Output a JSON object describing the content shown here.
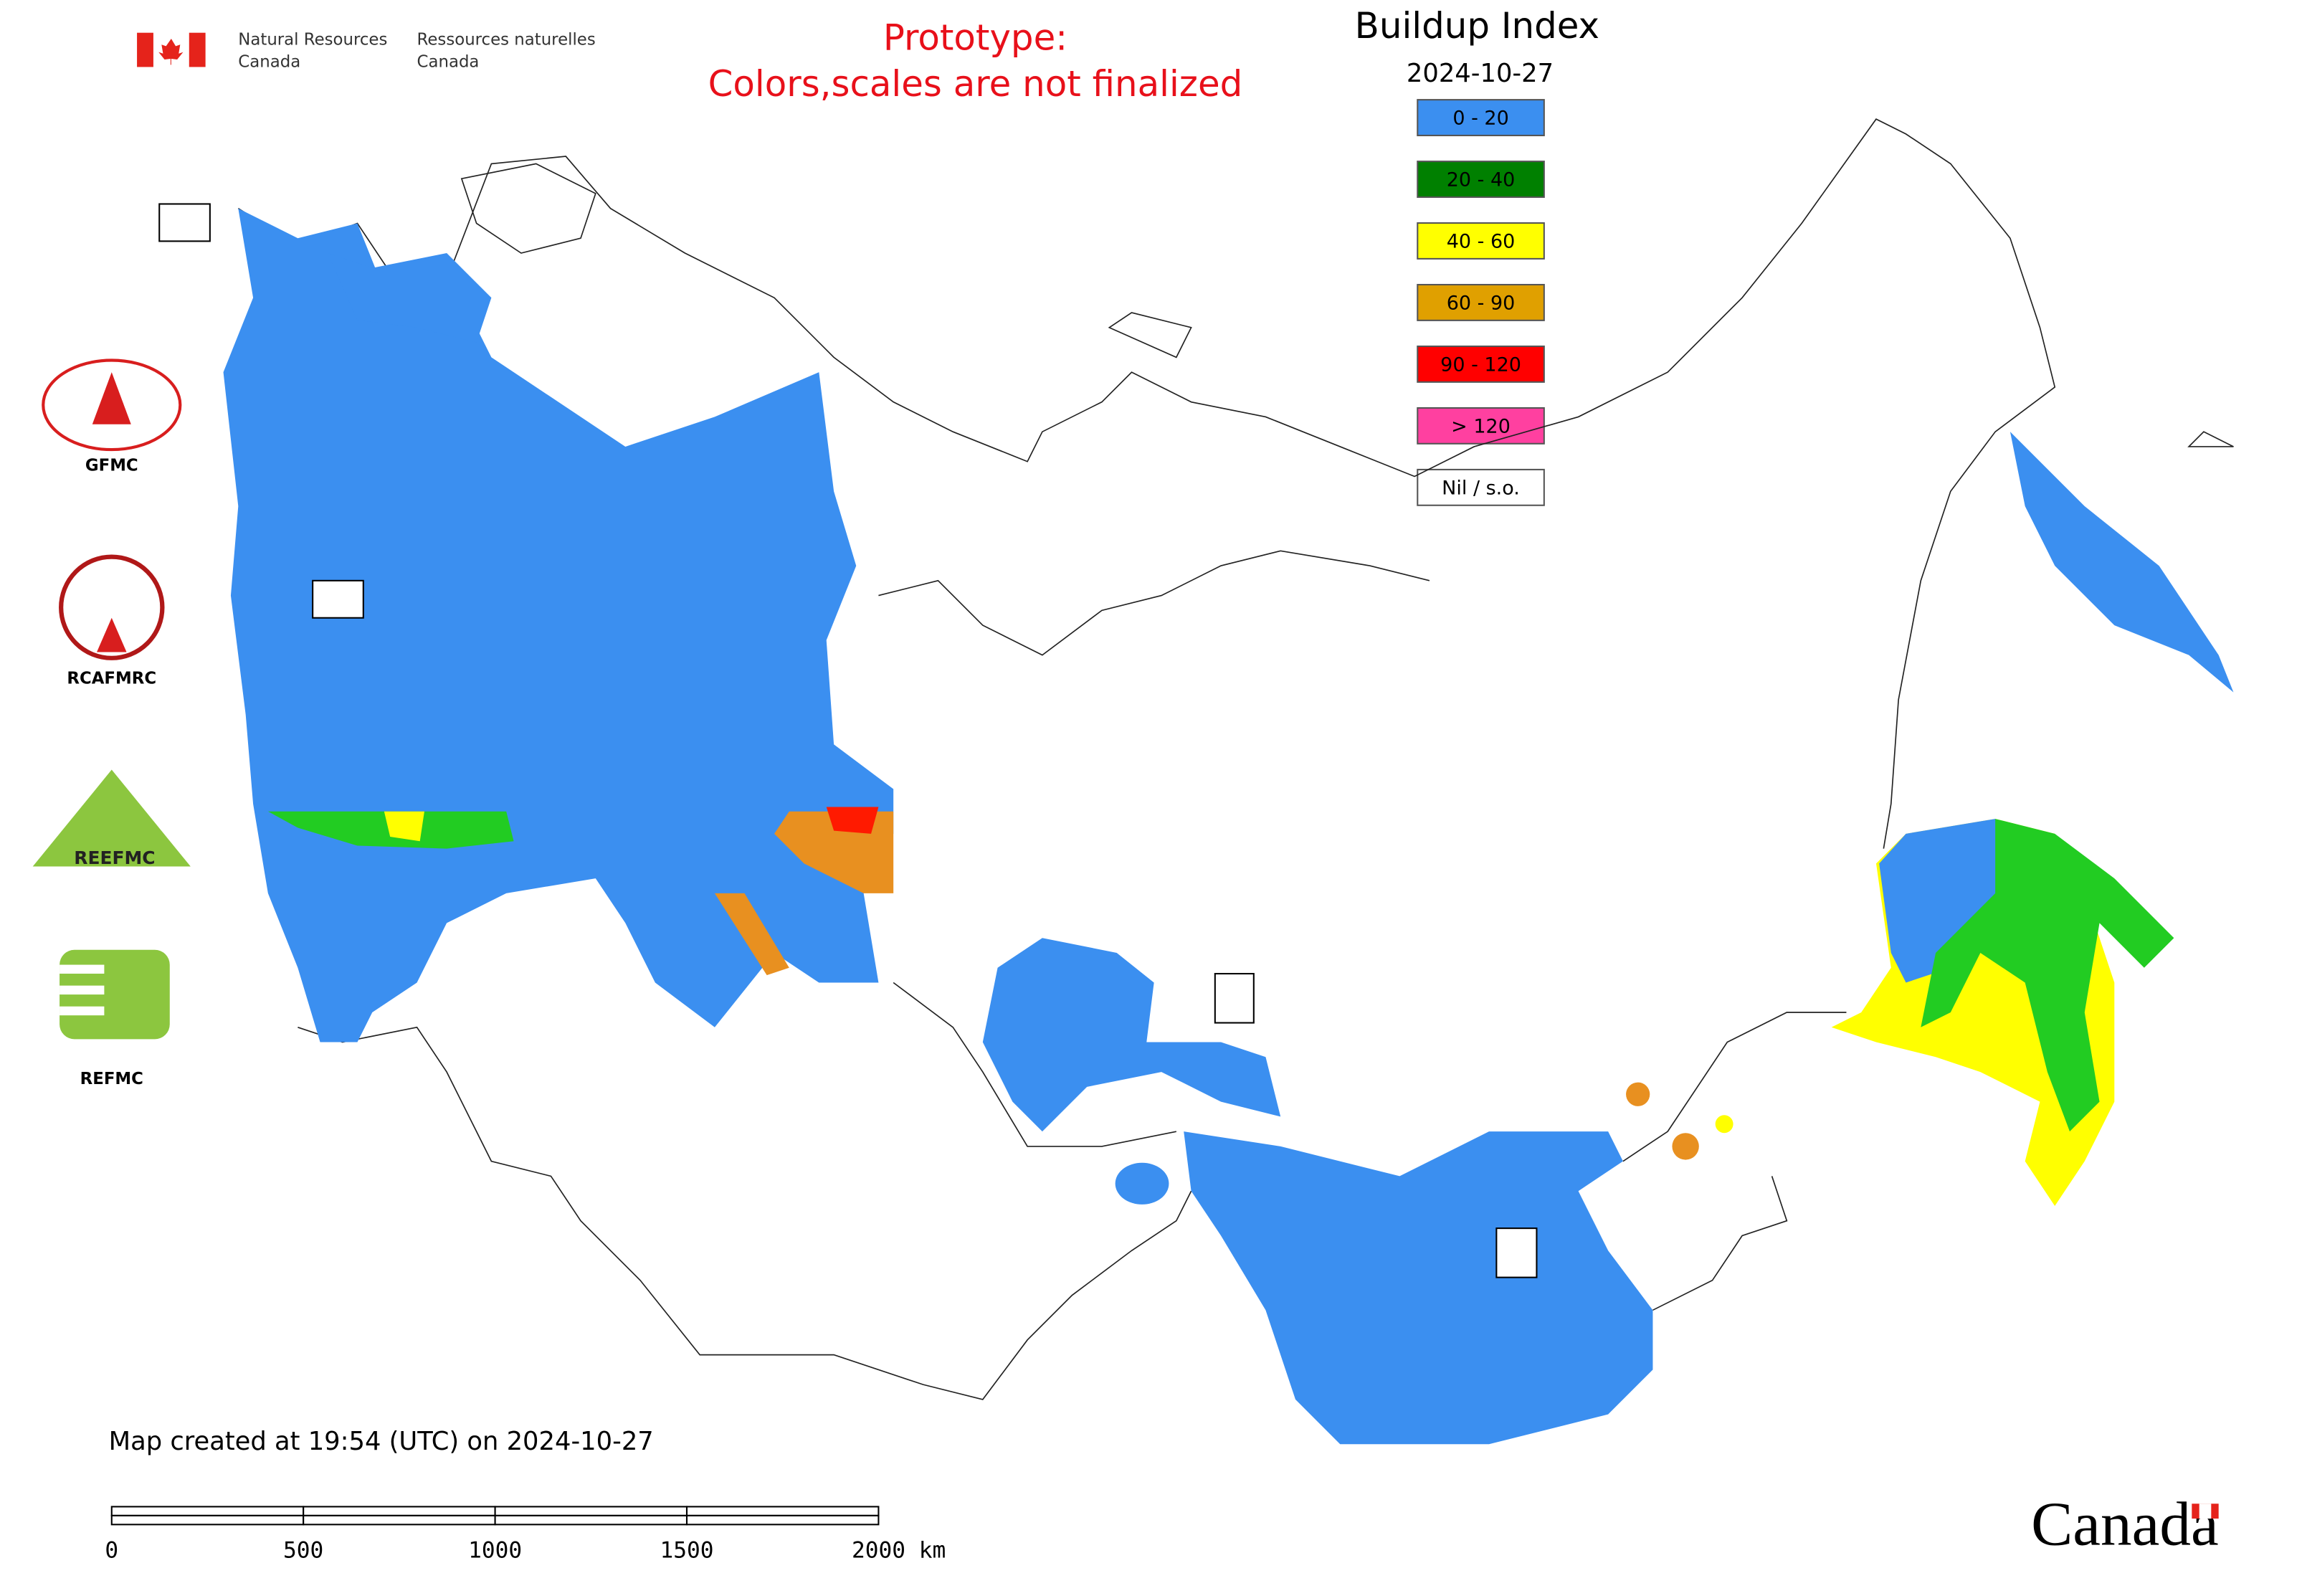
{
  "header": {
    "agency_en": [
      "Natural Resources",
      "Canada"
    ],
    "agency_fr": [
      "Ressources naturelles",
      "Canada"
    ]
  },
  "notice": [
    "Prototype:",
    "Colors,scales are not finalized"
  ],
  "legend": {
    "title": "Buildup Index",
    "date": "2024-10-27",
    "items": [
      {
        "label": "0 - 20",
        "color": "#3b8ff0"
      },
      {
        "label": "20 - 40",
        "color": "#008000"
      },
      {
        "label": "40 - 60",
        "color": "#ffff00"
      },
      {
        "label": "60 - 90",
        "color": "#e0a000"
      },
      {
        "label": "90 - 120",
        "color": "#ff0000"
      },
      {
        "label": "> 120",
        "color": "#ff40a0"
      },
      {
        "label": "Nil / s.o.",
        "color": "#ffffff"
      }
    ]
  },
  "logos": [
    "GFMC",
    "RCAFMRC",
    "REEFMC",
    "REFMC"
  ],
  "footer": {
    "created": "Map created at 19:54 (UTC) on 2024-10-27",
    "scale_labels": [
      "0",
      "500",
      "1000",
      "1500",
      "2000 km"
    ],
    "wordmark": "Canada"
  }
}
